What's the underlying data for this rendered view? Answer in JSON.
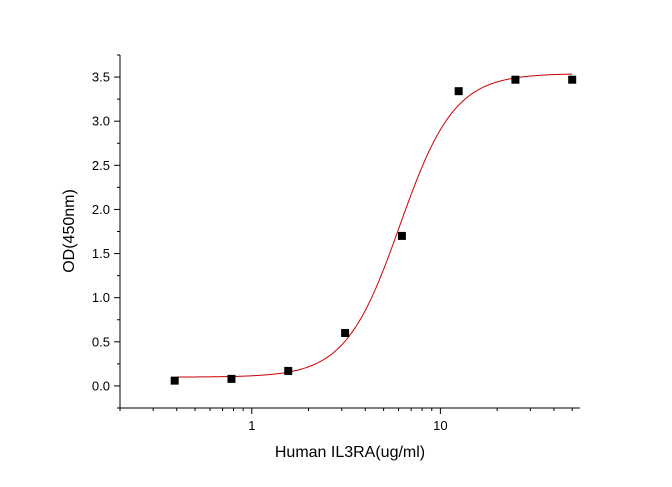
{
  "chart_data": {
    "type": "scatter",
    "title": "",
    "xlabel": "Human IL3RA(ug/ml)",
    "ylabel": "OD(450nm)",
    "x_scale": "log",
    "xlim": [
      0.2,
      55
    ],
    "ylim": [
      -0.25,
      3.75
    ],
    "x_major_ticks": [
      {
        "value": 1,
        "label": "1"
      },
      {
        "value": 10,
        "label": "10"
      }
    ],
    "y_ticks": [
      {
        "value": 0.0,
        "label": "0.0"
      },
      {
        "value": 0.5,
        "label": "0.5"
      },
      {
        "value": 1.0,
        "label": "1.0"
      },
      {
        "value": 1.5,
        "label": "1.5"
      },
      {
        "value": 2.0,
        "label": "2.0"
      },
      {
        "value": 2.5,
        "label": "2.5"
      },
      {
        "value": 3.0,
        "label": "3.0"
      },
      {
        "value": 3.5,
        "label": "3.5"
      }
    ],
    "grid": false,
    "series": [
      {
        "marker": "square",
        "color": "#000000",
        "x": [
          0.39,
          0.78,
          1.56,
          3.125,
          6.25,
          12.5,
          25,
          50
        ],
        "y": [
          0.06,
          0.08,
          0.17,
          0.6,
          1.7,
          3.34,
          3.47,
          3.47
        ]
      }
    ],
    "fit_curve": {
      "model": "4PL",
      "color": "#cc0000",
      "bottom": 0.1,
      "top": 3.54,
      "ec50": 6.1,
      "hill": 3.0,
      "x_range": [
        0.4,
        50
      ]
    }
  }
}
